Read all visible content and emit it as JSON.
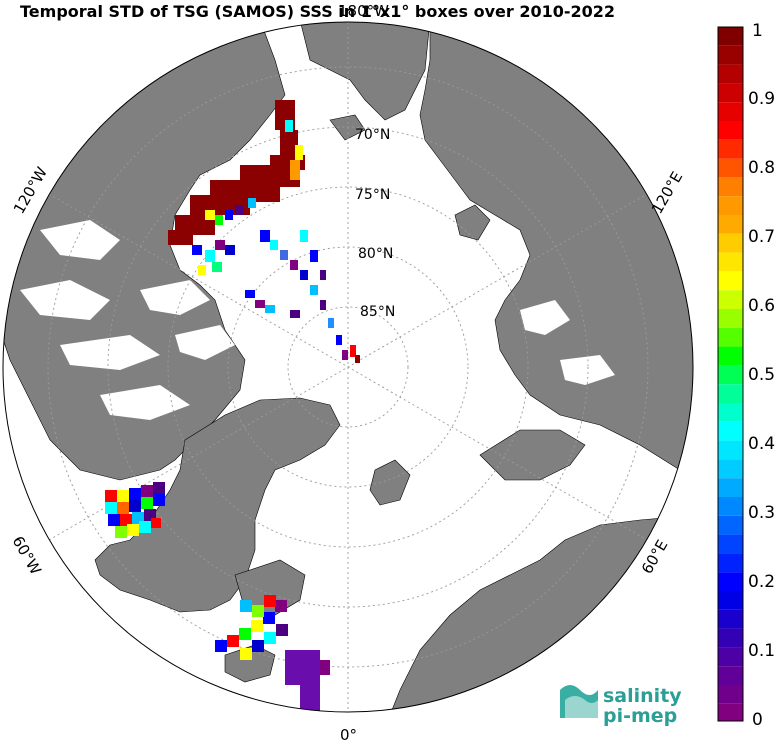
{
  "title": "Temporal STD of TSG (SAMOS) SSS in 1°x1° boxes over 2010-2022",
  "map": {
    "projection": "north polar stereographic",
    "latitude_circles": [
      "70°N",
      "75°N",
      "80°N",
      "85°N"
    ],
    "longitude_labels": [
      "180°W",
      "120°W",
      "120°E",
      "60°W",
      "60°E",
      "0°"
    ],
    "land_color": "#808080",
    "ocean_color": "#ffffff"
  },
  "colorbar": {
    "min": 0,
    "max": 1,
    "tick_labels": [
      "1",
      "0.9",
      "0.8",
      "0.7",
      "0.6",
      "0.5",
      "0.4",
      "0.3",
      "0.2",
      "0.1",
      "0"
    ],
    "colormap": "jet-like (purple → blue → cyan → green → yellow → orange → red → dark red)"
  },
  "logo": {
    "line1": "salinity",
    "line2": "pi-mep"
  }
}
